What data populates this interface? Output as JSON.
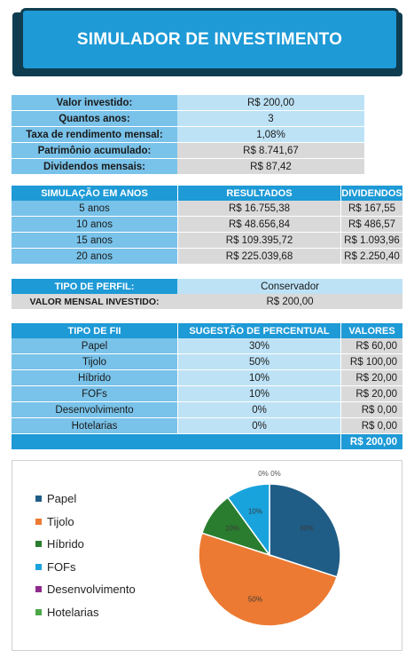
{
  "title": "SIMULADOR DE INVESTIMENTO",
  "summary": [
    {
      "label": "Valor investido:",
      "value": "R$ 200,00",
      "style": "v1"
    },
    {
      "label": "Quantos anos:",
      "value": "3",
      "style": "v1"
    },
    {
      "label": "Taxa de rendimento mensal:",
      "value": "1,08%",
      "style": "v1"
    },
    {
      "label": "Patrimônio acumulado:",
      "value": "R$ 8.741,67",
      "style": "v2"
    },
    {
      "label": "Dividendos mensais:",
      "value": "R$ 87,42",
      "style": "v2"
    }
  ],
  "simulation": {
    "headers": [
      "SIMULAÇÃO EM ANOS",
      "RESULTADOS",
      "DIVIDENDOS"
    ],
    "rows": [
      {
        "years": "5 anos",
        "result": "R$ 16.755,38",
        "dividends": "R$ 167,55"
      },
      {
        "years": "10 anos",
        "result": "R$ 48.656,84",
        "dividends": "R$ 486,57"
      },
      {
        "years": "15 anos",
        "result": "R$ 109.395,72",
        "dividends": "R$ 1.093,96"
      },
      {
        "years": "20 anos",
        "result": "R$ 225.039,68",
        "dividends": "R$ 2.250,40"
      }
    ]
  },
  "profile": {
    "type_label": "TIPO DE PERFIL:",
    "type_value": "Conservador",
    "monthly_label": "VALOR MENSAL INVESTIDO:",
    "monthly_value": "R$ 200,00"
  },
  "fii": {
    "headers": [
      "TIPO DE FII",
      "SUGESTÃO DE PERCENTUAL",
      "VALORES"
    ],
    "rows": [
      {
        "type": "Papel",
        "percent": "30%",
        "value": "R$ 60,00"
      },
      {
        "type": "Tijolo",
        "percent": "50%",
        "value": "R$ 100,00"
      },
      {
        "type": "Híbrido",
        "percent": "10%",
        "value": "R$ 20,00"
      },
      {
        "type": "FOFs",
        "percent": "10%",
        "value": "R$ 20,00"
      },
      {
        "type": "Desenvolvimento",
        "percent": "0%",
        "value": "R$ 0,00"
      },
      {
        "type": "Hotelarias",
        "percent": "0%",
        "value": "R$ 0,00"
      }
    ],
    "total": "R$ 200,00"
  },
  "chart_data": {
    "type": "pie",
    "categories": [
      "Papel",
      "Tijolo",
      "Híbrido",
      "FOFs",
      "Desenvolvimento",
      "Hotelarias"
    ],
    "values": [
      30,
      50,
      10,
      10,
      0,
      0
    ],
    "data_labels": [
      "30%",
      "50%",
      "10%",
      "10%",
      "0%",
      "0%"
    ],
    "colors": [
      "#1f5d86",
      "#ec7a32",
      "#2a7d2e",
      "#19a3dd",
      "#8e2a8e",
      "#4aa847"
    ],
    "legend_position": "left"
  }
}
